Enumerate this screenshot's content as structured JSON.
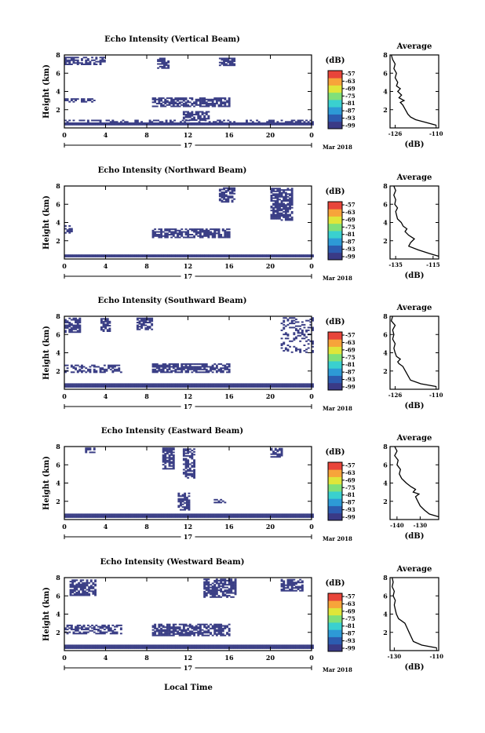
{
  "figure": {
    "day_label": "17",
    "month_label": "Mar 2018",
    "xlabel": "Local Time",
    "colorbar_unit": "(dB)",
    "colorbar_ticks": [
      "-57",
      "-63",
      "-69",
      "-75",
      "-81",
      "-87",
      "-93",
      "-99"
    ],
    "avg_title": "Average",
    "avg_xlabel": "(dB)"
  },
  "chart_data": [
    {
      "type": "heatmap",
      "title": "Echo Intensity (Vertical Beam)",
      "ylabel": "Height (km)",
      "x_ticks": [
        "0",
        "4",
        "8",
        "12",
        "16",
        "20",
        "0"
      ],
      "y_ticks": [
        "2",
        "4",
        "6",
        "8"
      ],
      "xlim": [
        0,
        24
      ],
      "ylim": [
        0,
        8
      ],
      "color_scale": [
        -99,
        -57
      ],
      "cell_value_dB": -99,
      "echo_regions": [
        {
          "t": [
            0,
            24
          ],
          "h": [
            0.3,
            0.6
          ]
        },
        {
          "t": [
            0,
            24
          ],
          "h": [
            0.6,
            0.9
          ],
          "density": 0.35
        },
        {
          "t": [
            0,
            3
          ],
          "h": [
            2.8,
            3.2
          ]
        },
        {
          "t": [
            8.5,
            16
          ],
          "h": [
            2.3,
            3.3
          ]
        },
        {
          "t": [
            11.5,
            14
          ],
          "h": [
            0.8,
            1.8
          ]
        },
        {
          "t": [
            0,
            4
          ],
          "h": [
            6.9,
            7.7
          ],
          "density": 0.55
        },
        {
          "t": [
            9,
            10
          ],
          "h": [
            6.5,
            7.7
          ]
        },
        {
          "t": [
            15,
            16.5
          ],
          "h": [
            6.8,
            7.7
          ]
        }
      ],
      "profile": {
        "title": "Average",
        "xlabel": "(dB)",
        "x_ticks": [
          "-126",
          "-110"
        ],
        "y_ticks": [
          "2",
          "4",
          "6",
          "8"
        ],
        "xlim": [
          -128,
          -109
        ],
        "ylim": [
          0,
          8
        ],
        "height_km": [
          0.3,
          0.6,
          0.9,
          1.2,
          1.5,
          2.0,
          2.5,
          2.8,
          3.0,
          3.3,
          3.6,
          4.0,
          4.3,
          4.6,
          5.0,
          5.5,
          6.0,
          6.5,
          7.0,
          7.5,
          8.0
        ],
        "value_dB": [
          -110,
          -114,
          -118,
          -120,
          -121,
          -122,
          -123,
          -124,
          -122.5,
          -124.5,
          -123.5,
          -125,
          -124,
          -125.5,
          -125,
          -126,
          -125.5,
          -126.5,
          -126,
          -127,
          -127.5
        ]
      }
    },
    {
      "type": "heatmap",
      "title": "Echo Intensity (Northward Beam)",
      "ylabel": "Height (km)",
      "x_ticks": [
        "0",
        "4",
        "8",
        "12",
        "16",
        "20",
        "0"
      ],
      "y_ticks": [
        "2",
        "4",
        "6",
        "8"
      ],
      "xlim": [
        0,
        24
      ],
      "ylim": [
        0,
        8
      ],
      "color_scale": [
        -99,
        -57
      ],
      "cell_value_dB": -99,
      "echo_regions": [
        {
          "t": [
            0,
            24
          ],
          "h": [
            0.2,
            0.5
          ]
        },
        {
          "t": [
            0,
            0.8
          ],
          "h": [
            2.8,
            3.6
          ]
        },
        {
          "t": [
            8.5,
            16
          ],
          "h": [
            2.3,
            3.3
          ]
        },
        {
          "t": [
            15,
            16.5
          ],
          "h": [
            6.2,
            7.8
          ]
        },
        {
          "t": [
            20,
            22
          ],
          "h": [
            4.2,
            7.8
          ]
        }
      ],
      "profile": {
        "title": "Average",
        "xlabel": "(dB)",
        "x_ticks": [
          "-135",
          "-115"
        ],
        "y_ticks": [
          "2",
          "4",
          "6",
          "8"
        ],
        "xlim": [
          -138,
          -112
        ],
        "ylim": [
          0,
          8
        ],
        "height_km": [
          0.3,
          0.6,
          1.0,
          1.4,
          1.8,
          2.2,
          2.6,
          3.0,
          3.3,
          3.6,
          4.0,
          4.4,
          4.8,
          5.2,
          5.6,
          6.0,
          6.5,
          7.0,
          7.5,
          8.0
        ],
        "value_dB": [
          -112,
          -117,
          -123,
          -128,
          -127,
          -125,
          -128,
          -130,
          -129,
          -131,
          -132,
          -134,
          -134.5,
          -135,
          -134,
          -135.5,
          -135,
          -136,
          -135,
          -136
        ]
      }
    },
    {
      "type": "heatmap",
      "title": "Echo Intensity (Southward Beam)",
      "ylabel": "Height (km)",
      "x_ticks": [
        "0",
        "4",
        "8",
        "12",
        "16",
        "20",
        "0"
      ],
      "y_ticks": [
        "2",
        "4",
        "6",
        "8"
      ],
      "xlim": [
        0,
        24
      ],
      "ylim": [
        0,
        8
      ],
      "color_scale": [
        -99,
        -57
      ],
      "cell_value_dB": -99,
      "echo_regions": [
        {
          "t": [
            0,
            24
          ],
          "h": [
            0.2,
            0.6
          ]
        },
        {
          "t": [
            0,
            5.5
          ],
          "h": [
            1.8,
            2.6
          ],
          "density": 0.5
        },
        {
          "t": [
            8.5,
            16
          ],
          "h": [
            1.8,
            2.8
          ]
        },
        {
          "t": [
            0,
            1.5
          ],
          "h": [
            6.2,
            7.8
          ]
        },
        {
          "t": [
            3.5,
            4.5
          ],
          "h": [
            6.3,
            7.8
          ]
        },
        {
          "t": [
            7,
            8.5
          ],
          "h": [
            6.5,
            7.8
          ]
        },
        {
          "t": [
            21,
            24
          ],
          "h": [
            4.0,
            7.8
          ],
          "density": 0.3
        }
      ],
      "profile": {
        "title": "Average",
        "xlabel": "(dB)",
        "x_ticks": [
          "-126",
          "-110"
        ],
        "y_ticks": [
          "2",
          "4",
          "6",
          "8"
        ],
        "xlim": [
          -128,
          -109
        ],
        "ylim": [
          0,
          8
        ],
        "height_km": [
          0.3,
          0.6,
          1.0,
          1.5,
          2.0,
          2.5,
          2.8,
          3.0,
          3.3,
          3.6,
          4.0,
          4.5,
          5.0,
          5.5,
          6.0,
          6.5,
          7.0,
          7.5,
          8.0
        ],
        "value_dB": [
          -110,
          -116,
          -120,
          -121,
          -122,
          -123,
          -124.5,
          -125,
          -124,
          -125.5,
          -126,
          -126.5,
          -126,
          -127,
          -126.5,
          -127,
          -126,
          -127.5,
          -127
        ]
      }
    },
    {
      "type": "heatmap",
      "title": "Echo Intensity (Eastward Beam)",
      "ylabel": "Height (km)",
      "x_ticks": [
        "0",
        "4",
        "8",
        "12",
        "16",
        "20",
        "0"
      ],
      "y_ticks": [
        "2",
        "4",
        "6",
        "8"
      ],
      "xlim": [
        0,
        24
      ],
      "ylim": [
        0,
        8
      ],
      "color_scale": [
        -99,
        -57
      ],
      "cell_value_dB": -99,
      "echo_regions": [
        {
          "t": [
            0,
            24
          ],
          "h": [
            0.2,
            0.6
          ]
        },
        {
          "t": [
            11,
            12
          ],
          "h": [
            1.0,
            2.8
          ]
        },
        {
          "t": [
            14.5,
            15.5
          ],
          "h": [
            1.8,
            2.2
          ]
        },
        {
          "t": [
            9.5,
            10.5
          ],
          "h": [
            5.5,
            7.8
          ]
        },
        {
          "t": [
            11.5,
            12.5
          ],
          "h": [
            4.5,
            7.8
          ]
        },
        {
          "t": [
            20,
            21
          ],
          "h": [
            6.8,
            7.8
          ]
        },
        {
          "t": [
            2,
            3
          ],
          "h": [
            7.3,
            7.8
          ]
        }
      ],
      "profile": {
        "title": "Average",
        "xlabel": "(dB)",
        "x_ticks": [
          "-140",
          "-130"
        ],
        "y_ticks": [
          "2",
          "4",
          "6",
          "8"
        ],
        "xlim": [
          -143,
          -122
        ],
        "ylim": [
          0,
          8
        ],
        "height_km": [
          0.3,
          0.6,
          1.0,
          1.5,
          2.0,
          2.5,
          2.8,
          3.0,
          3.3,
          3.6,
          4.0,
          4.5,
          5.0,
          5.5,
          6.0,
          6.5,
          7.0,
          7.5,
          8.0
        ],
        "value_dB": [
          -122,
          -126,
          -128,
          -130,
          -131,
          -132,
          -130.5,
          -133,
          -132,
          -134,
          -136,
          -138,
          -139,
          -138.5,
          -140,
          -139.5,
          -141,
          -140,
          -141
        ]
      }
    },
    {
      "type": "heatmap",
      "title": "Echo Intensity (Westward Beam)",
      "ylabel": "Height (km)",
      "x_ticks": [
        "0",
        "4",
        "8",
        "12",
        "16",
        "20",
        "0"
      ],
      "y_ticks": [
        "2",
        "4",
        "6",
        "8"
      ],
      "xlim": [
        0,
        24
      ],
      "ylim": [
        0,
        8
      ],
      "color_scale": [
        -99,
        -57
      ],
      "cell_value_dB": -99,
      "echo_regions": [
        {
          "t": [
            0,
            24
          ],
          "h": [
            0.2,
            0.6
          ]
        },
        {
          "t": [
            0,
            5.5
          ],
          "h": [
            1.8,
            2.8
          ],
          "density": 0.5
        },
        {
          "t": [
            8.5,
            16
          ],
          "h": [
            1.6,
            2.8
          ]
        },
        {
          "t": [
            0.5,
            3
          ],
          "h": [
            6.0,
            7.8
          ]
        },
        {
          "t": [
            13.5,
            16.5
          ],
          "h": [
            5.8,
            7.8
          ]
        },
        {
          "t": [
            21,
            23
          ],
          "h": [
            6.5,
            7.8
          ]
        }
      ],
      "profile": {
        "title": "Average",
        "xlabel": "(dB)",
        "x_ticks": [
          "-130",
          "-110"
        ],
        "y_ticks": [
          "2",
          "4",
          "6",
          "8"
        ],
        "xlim": [
          -132,
          -109
        ],
        "ylim": [
          0,
          8
        ],
        "height_km": [
          0.3,
          0.6,
          1.0,
          1.5,
          2.0,
          2.5,
          3.0,
          3.5,
          4.0,
          4.5,
          5.0,
          5.5,
          6.0,
          6.5,
          7.0,
          7.5,
          8.0
        ],
        "value_dB": [
          -110,
          -117,
          -121,
          -122,
          -123,
          -124,
          -125,
          -128,
          -129,
          -129.5,
          -130,
          -129.5,
          -130.5,
          -130,
          -131,
          -130.5,
          -131
        ]
      }
    }
  ],
  "colors": {
    "echo": "#3b3f86",
    "frame": "#000000",
    "colormap": [
      "#3a3a86",
      "#2c5cb0",
      "#2d9ad6",
      "#3ad0cf",
      "#7fe07a",
      "#dfe63a",
      "#f7a43a",
      "#e8453a"
    ]
  }
}
